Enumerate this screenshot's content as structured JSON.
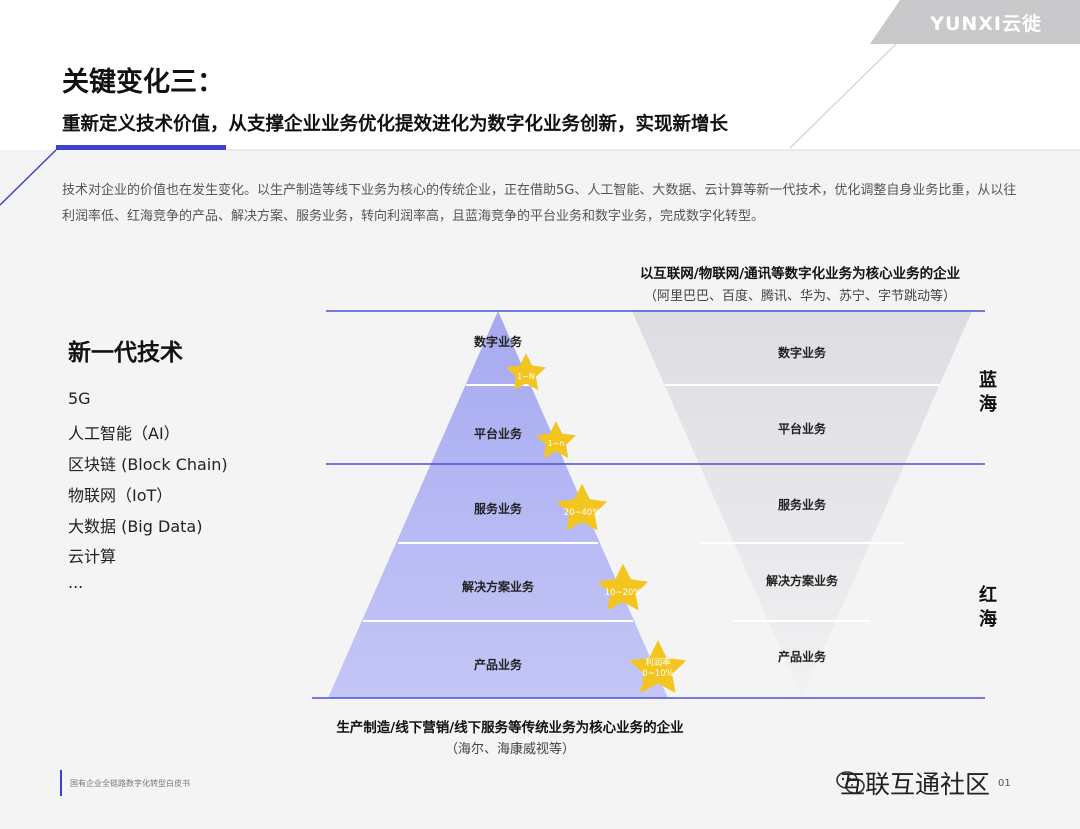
{
  "brand": {
    "logo_text": "YUNXI云徙"
  },
  "header": {
    "title": "关键变化三：",
    "subtitle": "重新定义技术价值，从支撑企业业务优化提效进化为数字化业务创新，实现新增长"
  },
  "intro": "技术对企业的价值也在发生变化。以生产制造等线下业务为核心的传统企业，正在借助5G、人工智能、大数据、云计算等新一代技术，优化调整自身业务比重，从以往利润率低、红海竞争的产品、解决方案、服务业务，转向利润率高，且蓝海竞争的平台业务和数字业务，完成数字化转型。",
  "tech": {
    "title": "新一代技术",
    "items": [
      "5G",
      "人工智能（AI）",
      "区块链 (Block Chain)",
      "物联网（IoT）",
      "大数据 (Big Data)",
      "云计算",
      "..."
    ]
  },
  "diagram": {
    "top_caption": "以互联网/物联网/通讯等数字化业务为核心业务的企业",
    "top_caption_sub": "（阿里巴巴、百度、腾讯、华为、苏宁、字节跳动等）",
    "bottom_caption": "生产制造/线下营销/线下服务等传统业务为核心业务的企业",
    "bottom_caption_sub": "（海尔、海康威视等）",
    "pyramid_levels": [
      "数字业务",
      "平台业务",
      "服务业务",
      "解决方案业务",
      "产品业务"
    ],
    "inverted_levels": [
      "数字业务",
      "平台业务",
      "服务业务",
      "解决方案业务",
      "产品业务"
    ],
    "stars": [
      "1~N",
      "1~n",
      "20~40%",
      "10~20%",
      "利润率\n0~10%"
    ],
    "blue_sea": "蓝海",
    "red_sea": "红海"
  },
  "footer": {
    "note": "国有企业全链路数字化转型白皮书",
    "watermark": "互联互通社区",
    "page": "01"
  },
  "colors": {
    "accent": "#3a43c9",
    "pyramid": "#b3b6f3",
    "star": "#f3c521"
  }
}
